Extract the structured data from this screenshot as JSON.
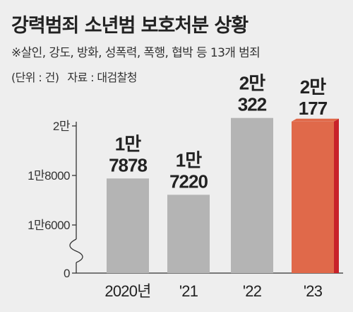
{
  "header": {
    "title": "강력범죄 소년범 보호처분 상황",
    "subtitle": "※살인, 강도, 방화, 성폭력, 폭행, 협박 등 13개 범죄",
    "unit": "(단위 : 건)",
    "source": "자료 : 대검찰청"
  },
  "colors": {
    "background": "#eeeeee",
    "bar_gray": "#b4b4b4",
    "bar_gray_side": "#9c9c9c",
    "bar_highlight": "#e0694a",
    "bar_highlight_side": "#c8222a",
    "axis": "#333333"
  },
  "chart_data": {
    "type": "bar",
    "categories": [
      "2020년",
      "'21",
      "'22",
      "'23"
    ],
    "values": [
      17878,
      17220,
      20322,
      20177
    ],
    "data_labels": [
      [
        "1만",
        "7878"
      ],
      [
        "1만",
        "7220"
      ],
      [
        "2만",
        "322"
      ],
      [
        "2만",
        "177"
      ]
    ],
    "highlight_index": 3,
    "y_ticks": [
      {
        "value": 20000,
        "label": "2만"
      },
      {
        "value": 18000,
        "label": "1만8000"
      },
      {
        "value": 16000,
        "label": "1만6000"
      },
      {
        "value": 0,
        "label": "0"
      }
    ],
    "ylim": [
      15000,
      20800
    ],
    "axis_break": true,
    "grid": false,
    "legend": "none"
  }
}
